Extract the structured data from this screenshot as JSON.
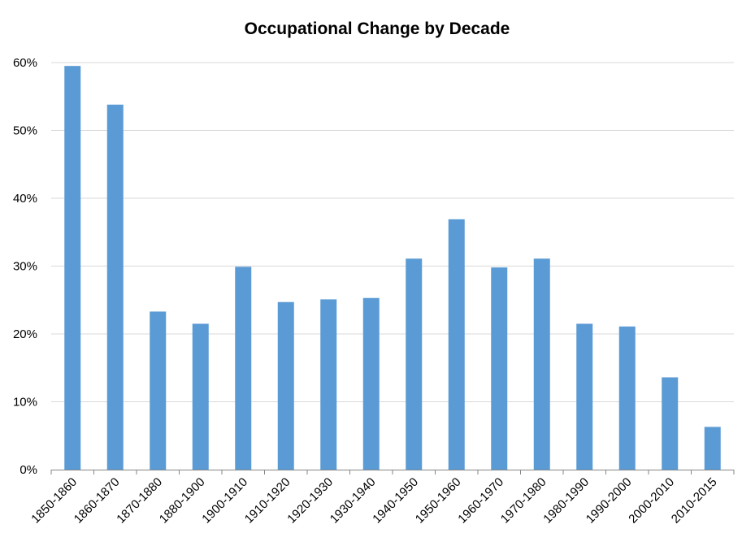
{
  "chart_data": {
    "type": "bar",
    "title": "Occupational Change by Decade",
    "xlabel": "",
    "ylabel": "",
    "categories": [
      "1850-1860",
      "1860-1870",
      "1870-1880",
      "1880-1900",
      "1900-1910",
      "1910-1920",
      "1920-1930",
      "1930-1940",
      "1940-1950",
      "1950-1960",
      "1960-1970",
      "1970-1980",
      "1980-1990",
      "1990-2000",
      "2000-2010",
      "2010-2015"
    ],
    "values": [
      59.5,
      53.8,
      23.3,
      21.5,
      29.9,
      24.7,
      25.1,
      25.3,
      31.1,
      36.9,
      29.8,
      31.1,
      21.5,
      21.1,
      13.6,
      6.3
    ],
    "value_unit": "%",
    "ylim": [
      0,
      60
    ],
    "yticks": [
      "0%",
      "10%",
      "20%",
      "30%",
      "40%",
      "50%",
      "60%"
    ],
    "grid": true,
    "legend": "none",
    "bar_color": "#5b9bd5",
    "grid_color": "#d9d9d9",
    "axis_color": "#868686"
  }
}
